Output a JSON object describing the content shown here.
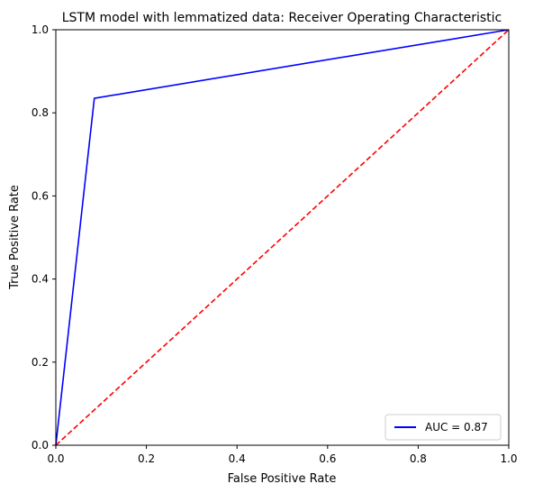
{
  "chart_data": {
    "type": "line",
    "title": "LSTM model with lemmatized data: Receiver Operating Characteristic",
    "xlabel": "False Positive Rate",
    "ylabel": "True Positive Rate",
    "xlim": [
      0,
      1
    ],
    "ylim": [
      0,
      1
    ],
    "x_ticks": [
      0.0,
      0.2,
      0.4,
      0.6,
      0.8,
      1.0
    ],
    "y_ticks": [
      0.0,
      0.2,
      0.4,
      0.6,
      0.8,
      1.0
    ],
    "x_tick_labels": [
      "0.0",
      "0.2",
      "0.4",
      "0.6",
      "0.8",
      "1.0"
    ],
    "y_tick_labels": [
      "0.0",
      "0.2",
      "0.4",
      "0.6",
      "0.8",
      "1.0"
    ],
    "grid": false,
    "legend_position": "lower-right",
    "series": [
      {
        "name": "AUC = 0.87",
        "color": "#0000ff",
        "style": "solid",
        "x": [
          0.0,
          0.085,
          1.0
        ],
        "y": [
          0.0,
          0.835,
          1.0
        ]
      },
      {
        "color": "#ff0000",
        "style": "dashed",
        "x": [
          0.0,
          1.0
        ],
        "y": [
          0.0,
          1.0
        ]
      }
    ]
  }
}
